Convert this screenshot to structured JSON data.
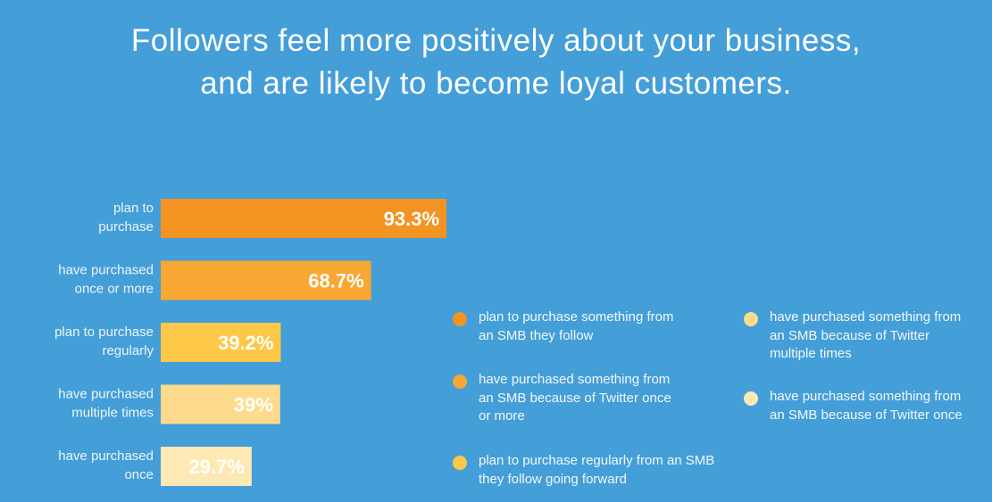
{
  "header": {
    "title_line1": "Followers feel more positively about your business,",
    "title_line2": "and are likely to become loyal customers."
  },
  "chart_data": {
    "type": "bar",
    "orientation": "horizontal",
    "categories": [
      "plan to purchase",
      "have purchased once or more",
      "plan to purchase regularly",
      "have purchased multiple times",
      "have purchased once"
    ],
    "category_lines": [
      [
        "plan to",
        "purchase"
      ],
      [
        "have purchased",
        "once or more"
      ],
      [
        "plan to purchase",
        "regularly"
      ],
      [
        "have purchased",
        "multiple times"
      ],
      [
        "have purchased",
        "once"
      ]
    ],
    "values": [
      93.3,
      68.7,
      39.2,
      39,
      29.7
    ],
    "value_labels": [
      "93.3%",
      "68.7%",
      "39.2%",
      "39%",
      "29.7%"
    ],
    "colors": [
      "#f39322",
      "#f8a733",
      "#fdc748",
      "#fedb8c",
      "#fee9b5"
    ],
    "xlim": [
      0,
      100
    ],
    "grid": false,
    "legend_position": "right"
  },
  "legend": {
    "items": [
      {
        "label": "plan to purchase something from an SMB they follow",
        "color": "#f39322"
      },
      {
        "label": "have purchased something from an SMB because of Twitter once or more",
        "color": "#f8a733"
      },
      {
        "label": "plan to purchase regularly from an SMB they follow going forward",
        "color": "#fdc748"
      },
      {
        "label": "have purchased something from an SMB because of Twitter multiple times",
        "color": "#fedb8c"
      },
      {
        "label": "have purchased something from an SMB because of Twitter once",
        "color": "#fee9b5"
      }
    ]
  }
}
